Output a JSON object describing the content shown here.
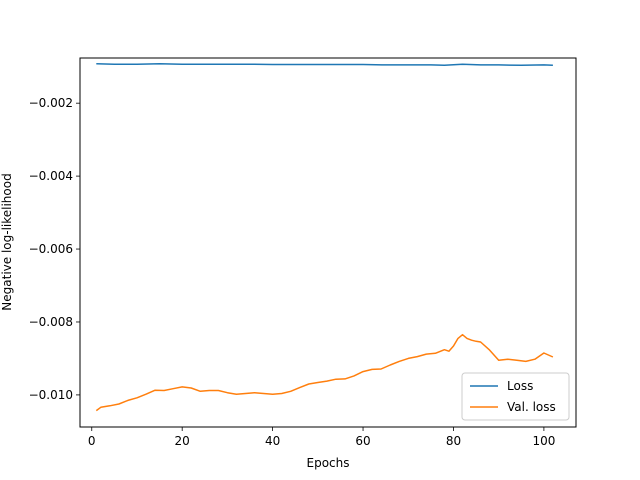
{
  "chart_data": {
    "type": "line",
    "xlabel": "Epochs",
    "ylabel": "Negative log-likelihood",
    "xlim": [
      -2.6,
      107.1
    ],
    "ylim": [
      -0.01088,
      -0.000761
    ],
    "grid": false,
    "legend_position": "lower-right",
    "x_ticks": [
      0,
      20,
      40,
      60,
      80,
      100
    ],
    "x_tick_labels": [
      "0",
      "20",
      "40",
      "60",
      "80",
      "100"
    ],
    "y_ticks": [
      -0.002,
      -0.004,
      -0.006,
      -0.008,
      -0.01
    ],
    "y_tick_labels": [
      "−0.002",
      "−0.004",
      "−0.006",
      "−0.008",
      "−0.010"
    ],
    "series": [
      {
        "name": "Loss",
        "color": "#1f77b4",
        "x": [
          1,
          5,
          10,
          15,
          20,
          25,
          30,
          35,
          40,
          45,
          50,
          55,
          60,
          65,
          70,
          75,
          78,
          82,
          86,
          90,
          95,
          100,
          102
        ],
        "y": [
          -0.00092,
          -0.00093,
          -0.00093,
          -0.00092,
          -0.00093,
          -0.00093,
          -0.00093,
          -0.00093,
          -0.00094,
          -0.00094,
          -0.00094,
          -0.00094,
          -0.00094,
          -0.00095,
          -0.00095,
          -0.00095,
          -0.00096,
          -0.00093,
          -0.00095,
          -0.00095,
          -0.00096,
          -0.00095,
          -0.00096
        ]
      },
      {
        "name": "Val. loss",
        "color": "#ff7f0e",
        "x": [
          1,
          2,
          4,
          6,
          8,
          10,
          12,
          14,
          16,
          18,
          20,
          22,
          24,
          26,
          28,
          30,
          32,
          34,
          36,
          38,
          40,
          42,
          44,
          46,
          48,
          50,
          52,
          54,
          56,
          58,
          60,
          62,
          64,
          66,
          68,
          70,
          72,
          74,
          76,
          78,
          79,
          80,
          81,
          82,
          83,
          84,
          85,
          86,
          88,
          90,
          92,
          94,
          96,
          98,
          100,
          102
        ],
        "y": [
          -0.01043,
          -0.01034,
          -0.0103,
          -0.01025,
          -0.01015,
          -0.01008,
          -0.00998,
          -0.00987,
          -0.00988,
          -0.00983,
          -0.00978,
          -0.00981,
          -0.0099,
          -0.00988,
          -0.00988,
          -0.00994,
          -0.00998,
          -0.00996,
          -0.00994,
          -0.00996,
          -0.00998,
          -0.00996,
          -0.0099,
          -0.0098,
          -0.0097,
          -0.00966,
          -0.00962,
          -0.00957,
          -0.00956,
          -0.00948,
          -0.00936,
          -0.0093,
          -0.00929,
          -0.00918,
          -0.00908,
          -0.009,
          -0.00895,
          -0.00888,
          -0.00886,
          -0.00876,
          -0.0088,
          -0.00866,
          -0.00845,
          -0.00835,
          -0.00845,
          -0.0085,
          -0.00853,
          -0.00855,
          -0.00877,
          -0.00905,
          -0.00902,
          -0.00905,
          -0.00908,
          -0.00902,
          -0.00885,
          -0.00896
        ]
      }
    ]
  }
}
